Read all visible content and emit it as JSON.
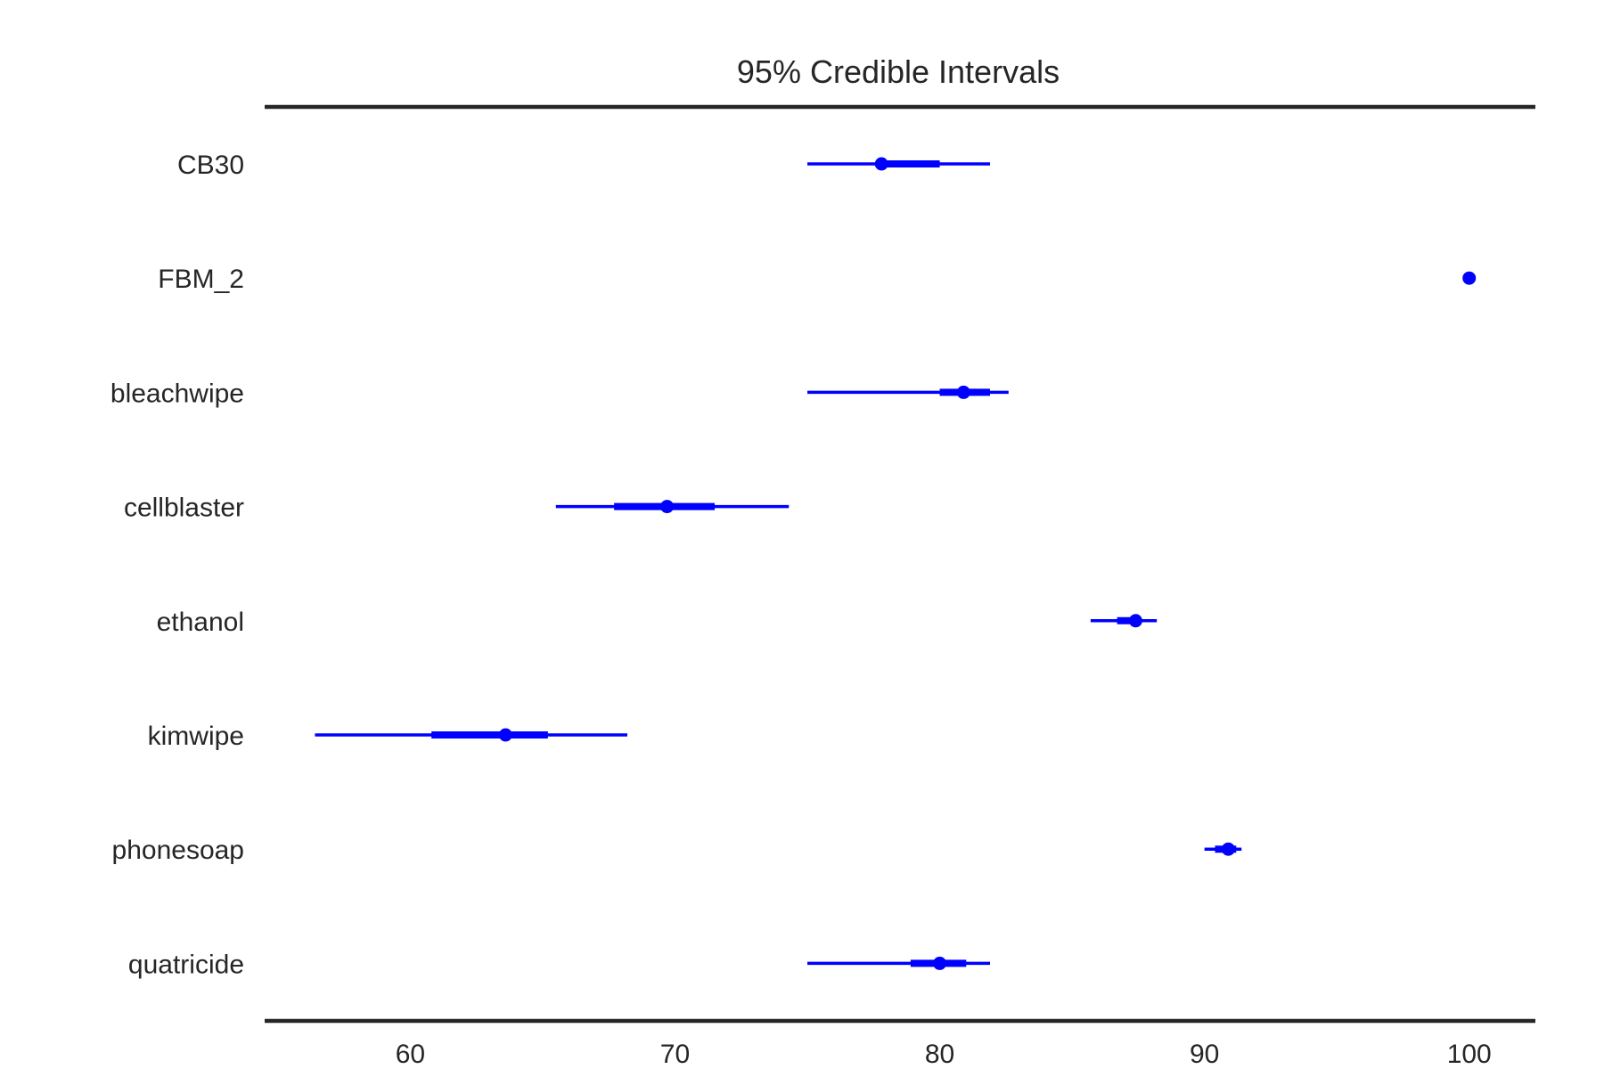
{
  "chart_data": {
    "type": "forest",
    "title": "95% Credible Intervals",
    "xlabel": "",
    "ylabel": "",
    "xlim": [
      54.5,
      102.5
    ],
    "x_ticks": [
      60,
      70,
      80,
      90,
      100
    ],
    "x_tick_labels": [
      "60",
      "70",
      "80",
      "90",
      "100"
    ],
    "grid": false,
    "mark_color": "#0000ff",
    "axis_color": "#262626",
    "rows": [
      {
        "label": "CB30",
        "median": 77.8,
        "hdi_low": 75.0,
        "hdi_high": 81.9,
        "iqr_low": 77.8,
        "iqr_high": 80.0
      },
      {
        "label": "FBM_2",
        "median": 100.0,
        "hdi_low": 100.0,
        "hdi_high": 100.0,
        "iqr_low": 100.0,
        "iqr_high": 100.0
      },
      {
        "label": "bleachwipe",
        "median": 80.9,
        "hdi_low": 75.0,
        "hdi_high": 82.6,
        "iqr_low": 80.0,
        "iqr_high": 81.9
      },
      {
        "label": "cellblaster",
        "median": 69.7,
        "hdi_low": 65.5,
        "hdi_high": 74.3,
        "iqr_low": 67.7,
        "iqr_high": 71.5
      },
      {
        "label": "ethanol",
        "median": 87.4,
        "hdi_low": 85.7,
        "hdi_high": 88.2,
        "iqr_low": 86.7,
        "iqr_high": 87.6
      },
      {
        "label": "kimwipe",
        "median": 63.6,
        "hdi_low": 56.4,
        "hdi_high": 68.2,
        "iqr_low": 60.8,
        "iqr_high": 65.2
      },
      {
        "label": "phonesoap",
        "median": 90.9,
        "hdi_low": 90.0,
        "hdi_high": 91.4,
        "iqr_low": 90.4,
        "iqr_high": 91.2
      },
      {
        "label": "quatricide",
        "median": 80.0,
        "hdi_low": 75.0,
        "hdi_high": 81.9,
        "iqr_low": 78.9,
        "iqr_high": 81.0
      }
    ]
  }
}
